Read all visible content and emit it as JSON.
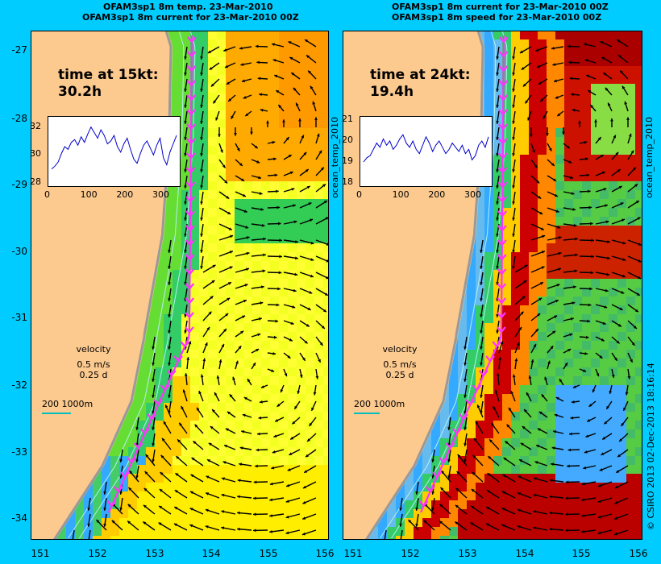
{
  "left_panel": {
    "title_line1": "OFAM3sp1 8m temp. 23-Mar-2010",
    "title_line2": "OFAM3sp1 8m current for 23-Mar-2010 00Z",
    "time_label": "time at 15kt:",
    "time_value": "30.2h",
    "inset_y_ticks": [
      "32",
      "30",
      "28"
    ],
    "inset_x_ticks": [
      "0",
      "100",
      "200",
      "300"
    ],
    "velocity_label": "velocity",
    "velocity_scale": "0.5 m/s",
    "velocity_days": "0.25 d",
    "contour_label": "200  1000m"
  },
  "right_panel": {
    "title_line1": "OFAM3sp1 8m current for 23-Mar-2010 00Z",
    "title_line2": "OFAM3sp1 8m speed for 23-Mar-2010 00Z",
    "time_label": "time at 24kt:",
    "time_value": "19.4h",
    "inset_y_ticks": [
      "21",
      "20",
      "19",
      "18"
    ],
    "inset_x_ticks": [
      "0",
      "100",
      "200",
      "300"
    ],
    "velocity_label": "velocity",
    "velocity_scale": "0.5 m/s",
    "velocity_days": "0.25 d",
    "contour_label": "200  1000m"
  },
  "side_labels": {
    "left_product": "ocean_temp_2010",
    "right_product": "ocean_temp_2010",
    "credit": "© CSIRO 2013   02-Dec-2013 18:16:14"
  },
  "map": {
    "latitude_ticks": [
      "-27",
      "-28",
      "-29",
      "-30",
      "-31",
      "-32",
      "-33",
      "-34"
    ],
    "longitude_ticks": [
      "151",
      "152",
      "153",
      "154",
      "155",
      "156"
    ],
    "lat_range": [
      -34.3,
      -26.7
    ],
    "lon_range": [
      150.9,
      156
    ],
    "inset_series_left": [
      29.0,
      29.2,
      29.5,
      30.1,
      30.6,
      30.4,
      30.9,
      31.1,
      30.7,
      31.3,
      30.9,
      31.5,
      32.0,
      31.6,
      31.2,
      31.8,
      31.4,
      30.8,
      31.0,
      31.4,
      30.6,
      30.2,
      30.8,
      31.2,
      30.4,
      29.7,
      29.4,
      30.1,
      30.7,
      31.0,
      30.5,
      30.0,
      30.7,
      31.2,
      29.8,
      29.3,
      30.2,
      30.8,
      31.4
    ],
    "inset_series_right": [
      19.0,
      19.2,
      19.3,
      19.6,
      19.9,
      19.7,
      20.1,
      19.8,
      20.0,
      19.6,
      19.8,
      20.1,
      20.3,
      19.9,
      19.7,
      20.0,
      19.6,
      19.4,
      19.8,
      20.2,
      19.9,
      19.5,
      19.8,
      20.0,
      19.7,
      19.4,
      19.6,
      19.9,
      19.7,
      19.5,
      19.8,
      19.4,
      19.6,
      19.1,
      19.3,
      19.8,
      20.0,
      19.7,
      20.2
    ],
    "colors": {
      "land": "#fcc98f",
      "ocean_bg": "#00ccff",
      "track": "#ff33ff",
      "track_fill": "#cc33cc",
      "contour": "#b0f0f0",
      "coast_gray": "#999999"
    }
  }
}
